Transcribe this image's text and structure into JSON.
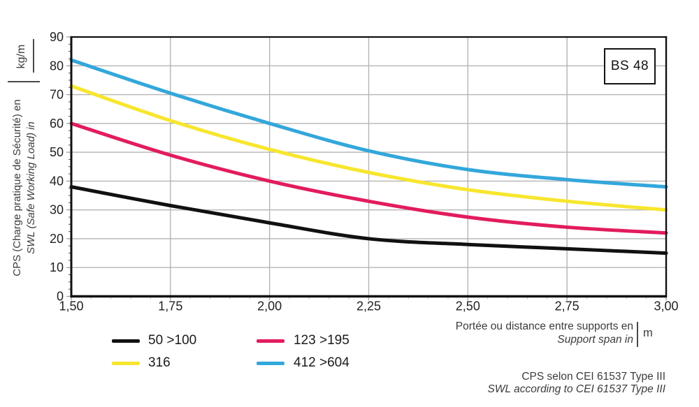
{
  "badge": {
    "label": "BS 48"
  },
  "y_axis": {
    "title_fr": "CPS (Charge pratique de Sécurité) en",
    "title_en": "SWL (Safe Working Load) in",
    "unit": "kg/m"
  },
  "x_axis": {
    "title_fr": "Portée ou distance entre supports en",
    "title_en": "Support span in",
    "unit": "m"
  },
  "legend": {
    "items": [
      {
        "label": "50 >100",
        "color": "#111111"
      },
      {
        "label": "123 >195",
        "color": "#e21c5c"
      },
      {
        "label": "316",
        "color": "#f7e62e"
      },
      {
        "label": "412 >604",
        "color": "#33a7db"
      }
    ]
  },
  "footnote": {
    "line1": "CPS selon CEI 61537 Type III",
    "line2": "SWL according to CEI 61537 Type III"
  },
  "chart_data": {
    "type": "line",
    "title": "",
    "xlabel": "Portée ou distance entre supports en / Support span in (m)",
    "ylabel": "CPS (Charge pratique de Sécurité) / SWL (Safe Working Load) (kg/m)",
    "x": [
      1.5,
      1.75,
      2.0,
      2.25,
      2.5,
      2.75,
      3.0
    ],
    "x_tick_labels": [
      "1,50",
      "1,75",
      "2,00",
      "2,25",
      "2,50",
      "2,75",
      "3,00"
    ],
    "y_ticks": [
      0,
      10,
      20,
      30,
      40,
      50,
      60,
      70,
      80,
      90
    ],
    "y_tick_labels": [
      "0",
      "10",
      "20",
      "30",
      "40",
      "50",
      "60",
      "70",
      "80",
      "90"
    ],
    "xlim": [
      1.5,
      3.0
    ],
    "ylim": [
      0,
      90
    ],
    "x_minor_step": 0.05,
    "y_minor_step": 2.5,
    "grid": true,
    "legend_position": "bottom",
    "series": [
      {
        "name": "50 >100",
        "color": "#111111",
        "values": [
          38,
          31.5,
          25.5,
          20,
          18,
          16.5,
          15
        ]
      },
      {
        "name": "123 >195",
        "color": "#e21c5c",
        "values": [
          60,
          49,
          40,
          33,
          27.5,
          24,
          22
        ]
      },
      {
        "name": "316",
        "color": "#f7e62e",
        "values": [
          73,
          61,
          51,
          43,
          37,
          33,
          30
        ]
      },
      {
        "name": "412 >604",
        "color": "#33a7db",
        "values": [
          82,
          70.5,
          60,
          50.5,
          44,
          40.5,
          38
        ]
      }
    ],
    "grid_color": "#b4b4b4",
    "frame_color": "#111111"
  }
}
